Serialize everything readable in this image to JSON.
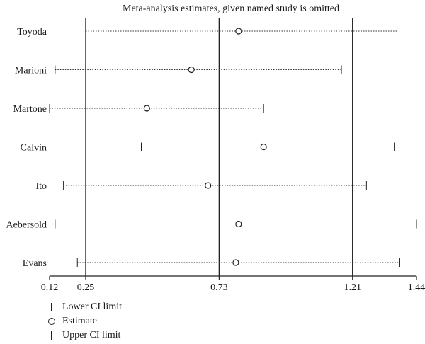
{
  "chart_data": {
    "type": "forest",
    "title": "Meta-analysis estimates, given named study is omitted",
    "xlim": [
      0.12,
      1.44
    ],
    "xticks": [
      "0.12",
      "0.25",
      "0.73",
      "1.21",
      "1.44"
    ],
    "reference_lines": [
      0.25,
      0.73,
      1.21
    ],
    "studies": [
      {
        "name": "Toyoda",
        "lower": 0.25,
        "estimate": 0.8,
        "upper": 1.37
      },
      {
        "name": "Marioni",
        "lower": 0.14,
        "estimate": 0.63,
        "upper": 1.17
      },
      {
        "name": "Martone",
        "lower": 0.12,
        "estimate": 0.47,
        "upper": 0.89
      },
      {
        "name": "Calvin",
        "lower": 0.45,
        "estimate": 0.89,
        "upper": 1.36
      },
      {
        "name": "Ito",
        "lower": 0.17,
        "estimate": 0.69,
        "upper": 1.26
      },
      {
        "name": "Aebersold",
        "lower": 0.14,
        "estimate": 0.8,
        "upper": 1.44
      },
      {
        "name": "Evans",
        "lower": 0.22,
        "estimate": 0.79,
        "upper": 1.38
      }
    ]
  },
  "legend": {
    "items": [
      {
        "symbol": "bar",
        "label": "Lower CI limit"
      },
      {
        "symbol": "circle",
        "label": "Estimate"
      },
      {
        "symbol": "bar",
        "label": "Upper CI limit"
      }
    ]
  }
}
